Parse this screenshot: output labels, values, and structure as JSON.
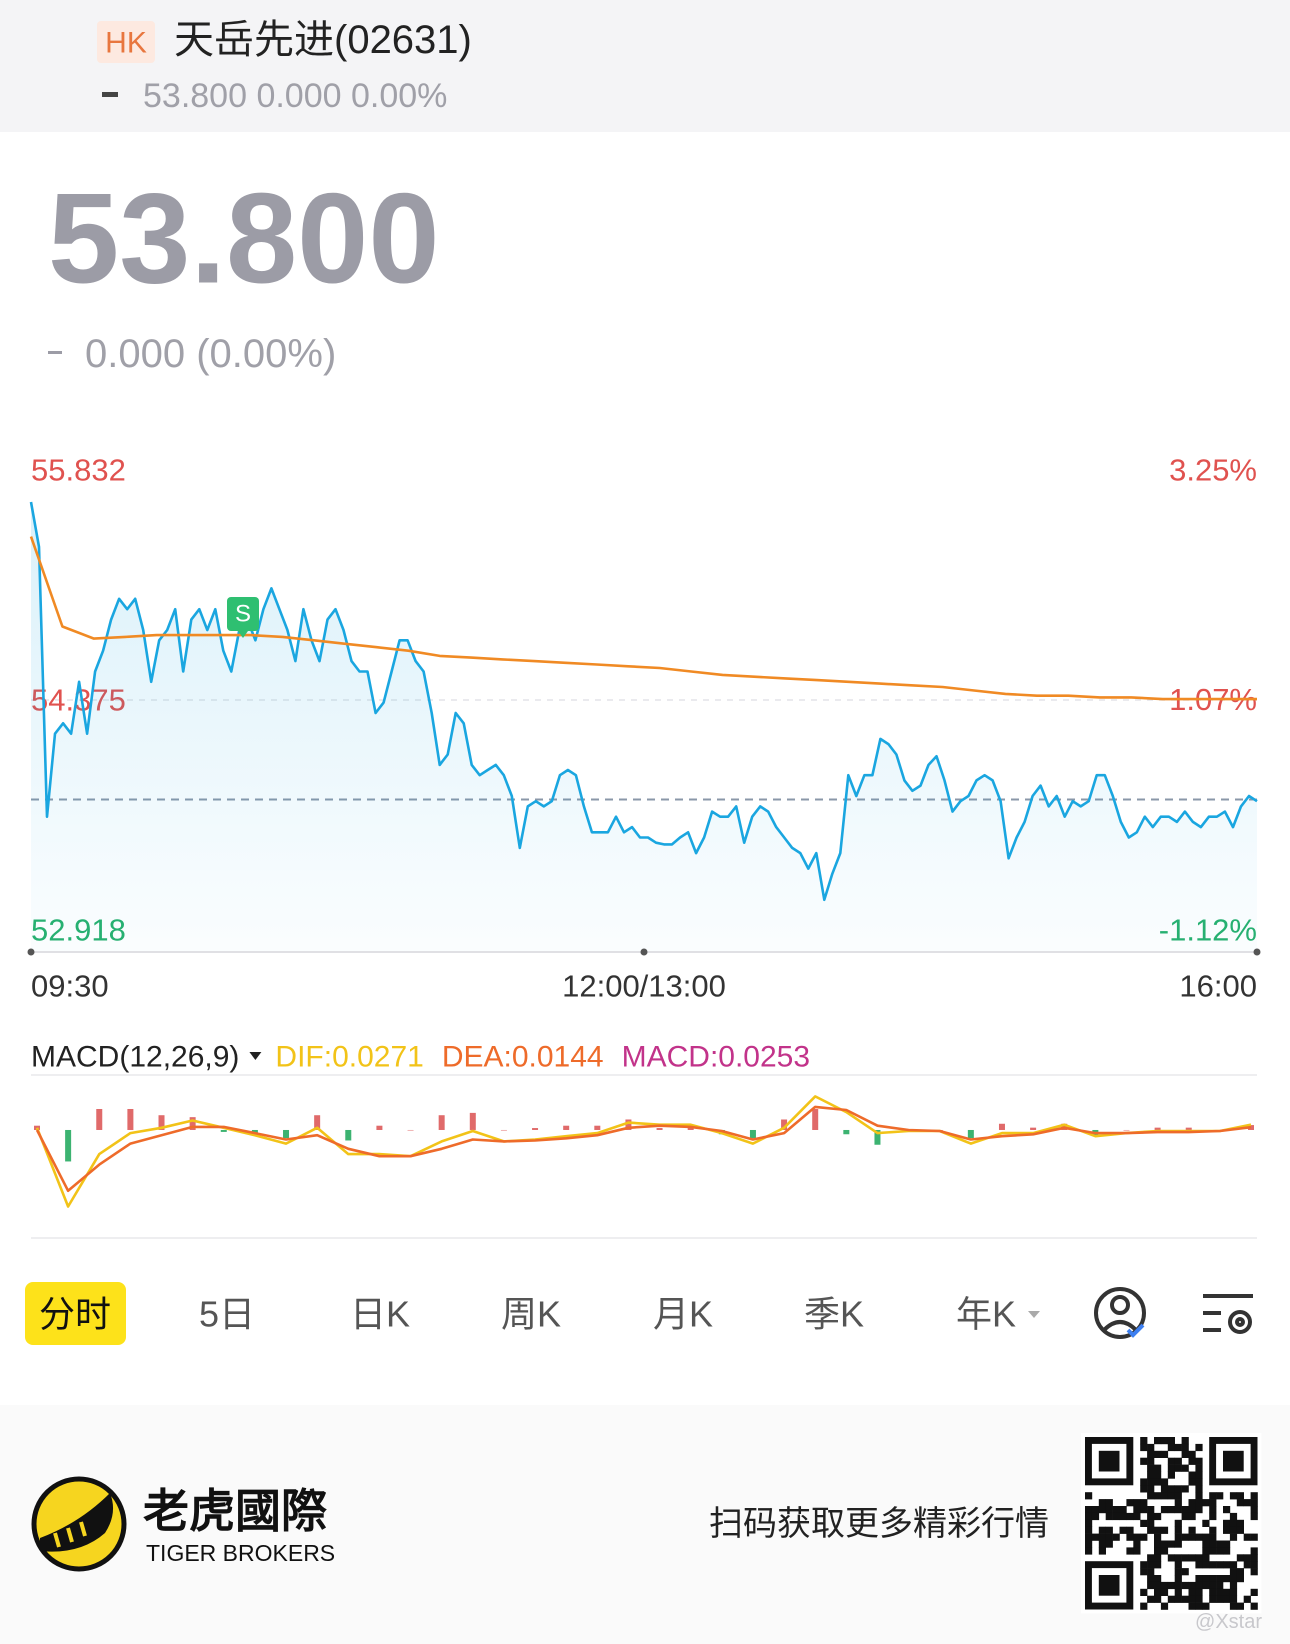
{
  "quote": {
    "market": "HK",
    "name": "天岳先进(02631)",
    "summary": "53.800 0.000 0.00%",
    "price": "53.800",
    "change": "0.000 (0.00%)"
  },
  "chart_data": [
    {
      "type": "line",
      "ylim": [
        52.918,
        55.832
      ],
      "yticks": [
        52.918,
        54.375,
        55.832
      ],
      "y2lim": [
        -1.12,
        3.25
      ],
      "y2ticks": [
        {
          "value": -1.12,
          "label": "-1.12%"
        },
        {
          "value": 1.07,
          "label": "1.07%"
        },
        {
          "value": 3.25,
          "label": "3.25%"
        }
      ],
      "grid": true,
      "reference_line": 53.8,
      "up_color": "#e0524f",
      "down_color": "#27b06e",
      "x_labels": [
        "09:30",
        "12:00/13:00",
        "16:00"
      ],
      "annotations": [
        {
          "label": "S",
          "color": "#2fbf71"
        }
      ],
      "series": [
        {
          "color": "#1aa6e0",
          "fill": true,
          "values": [
            55.52,
            55.26,
            53.7,
            54.18,
            54.24,
            54.18,
            54.48,
            54.18,
            54.54,
            54.66,
            54.84,
            54.96,
            54.9,
            54.96,
            54.78,
            54.48,
            54.72,
            54.78,
            54.9,
            54.54,
            54.84,
            54.9,
            54.78,
            54.9,
            54.66,
            54.54,
            54.78,
            54.84,
            54.72,
            54.9,
            55.02,
            54.9,
            54.78,
            54.6,
            54.9,
            54.72,
            54.6,
            54.84,
            54.9,
            54.78,
            54.6,
            54.54,
            54.54,
            54.3,
            54.36,
            54.54,
            54.72,
            54.72,
            54.6,
            54.54,
            54.3,
            54.0,
            54.06,
            54.3,
            54.24,
            54.0,
            53.94,
            53.97,
            54.0,
            53.94,
            53.82,
            53.52,
            53.76,
            53.79,
            53.76,
            53.79,
            53.94,
            53.97,
            53.94,
            53.76,
            53.61,
            53.61,
            53.61,
            53.7,
            53.61,
            53.64,
            53.58,
            53.58,
            53.55,
            53.54,
            53.54,
            53.58,
            53.61,
            53.49,
            53.58,
            53.73,
            53.7,
            53.7,
            53.76,
            53.55,
            53.7,
            53.76,
            53.73,
            53.64,
            53.58,
            53.52,
            53.49,
            53.4,
            53.49,
            53.22,
            53.37,
            53.49,
            53.94,
            53.82,
            53.94,
            53.94,
            54.15,
            54.12,
            54.06,
            53.91,
            53.85,
            53.88,
            54.0,
            54.05,
            53.91,
            53.73,
            53.79,
            53.82,
            53.91,
            53.94,
            53.91,
            53.79,
            53.46,
            53.58,
            53.67,
            53.82,
            53.88,
            53.76,
            53.82,
            53.7,
            53.79,
            53.76,
            53.79,
            53.94,
            53.94,
            53.82,
            53.67,
            53.58,
            53.61,
            53.7,
            53.64,
            53.7,
            53.7,
            53.67,
            53.73,
            53.67,
            53.64,
            53.7,
            53.7,
            53.73,
            53.64,
            53.76,
            53.82,
            53.79
          ]
        },
        {
          "color": "#f08a24",
          "fill": false,
          "values": [
            55.32,
            54.8,
            54.73,
            54.74,
            54.75,
            54.75,
            54.75,
            54.75,
            54.74,
            54.72,
            54.7,
            54.68,
            54.66,
            54.63,
            54.62,
            54.61,
            54.6,
            54.59,
            54.58,
            54.57,
            54.56,
            54.54,
            54.52,
            54.51,
            54.5,
            54.49,
            54.48,
            54.47,
            54.46,
            54.45,
            54.43,
            54.41,
            54.4,
            54.4,
            54.39,
            54.39,
            54.38,
            54.38,
            54.38,
            54.38
          ]
        }
      ]
    },
    {
      "type": "macd",
      "title": "MACD(12,26,9)",
      "ylim": [
        -0.556,
        0.283
      ],
      "series": [
        {
          "name": "DIF",
          "legend_label": "DIF:0.0271",
          "style": "line",
          "color": "#f2c318",
          "values": [
            0.011,
            -0.394,
            -0.124,
            -0.016,
            0.011,
            0.049,
            0.011,
            -0.027,
            -0.07,
            0.011,
            -0.124,
            -0.124,
            -0.135,
            -0.059,
            -0.005,
            -0.059,
            -0.049,
            -0.032,
            -0.016,
            0.038,
            0.027,
            0.027,
            -0.016,
            -0.07,
            0.011,
            0.173,
            0.092,
            -0.016,
            -0.005,
            -0.005,
            -0.07,
            -0.016,
            -0.016,
            0.027,
            -0.032,
            -0.016,
            -0.005,
            -0.005,
            -0.005,
            0.0271
          ]
        },
        {
          "name": "DEA",
          "legend_label": "DEA:0.0144",
          "style": "line",
          "color": "#ee6b2a",
          "values": [
            0,
            -0.313,
            -0.178,
            -0.07,
            -0.027,
            0.016,
            0.016,
            -0.016,
            -0.049,
            -0.027,
            -0.097,
            -0.135,
            -0.135,
            -0.097,
            -0.049,
            -0.059,
            -0.054,
            -0.043,
            -0.027,
            0.011,
            0.022,
            0.016,
            -0.005,
            -0.049,
            -0.016,
            0.119,
            0.103,
            0.022,
            0,
            -0.005,
            -0.049,
            -0.032,
            -0.022,
            0.011,
            -0.016,
            -0.016,
            -0.011,
            -0.011,
            -0.005,
            0.0144
          ]
        },
        {
          "name": "MACD",
          "legend_label": "MACD:0.0253",
          "style": "bar",
          "color": "#c2338a",
          "up_color": "#e06a6a",
          "down_color": "#3cb371",
          "values": [
            0.022,
            -0.162,
            0.108,
            0.108,
            0.076,
            0.066,
            -0.01,
            -0.022,
            -0.042,
            0.076,
            -0.054,
            0.022,
            0,
            0.076,
            0.088,
            0,
            0.01,
            0.022,
            0.022,
            0.054,
            0.01,
            0.022,
            -0.022,
            -0.042,
            0.054,
            0.108,
            -0.022,
            -0.076,
            -0.01,
            0,
            -0.042,
            0.032,
            0.012,
            0.032,
            -0.032,
            0,
            0.012,
            0.012,
            0,
            0.0253
          ]
        }
      ]
    }
  ],
  "tabs": {
    "items": [
      "分时",
      "5日",
      "日K",
      "周K",
      "月K",
      "季K",
      "年K"
    ],
    "selected": 0
  },
  "footer": {
    "brand": "老虎國際",
    "brand_en": "TIGER BROKERS",
    "slogan": "扫码获取更多精彩行情",
    "watermark": "@Xstar"
  }
}
